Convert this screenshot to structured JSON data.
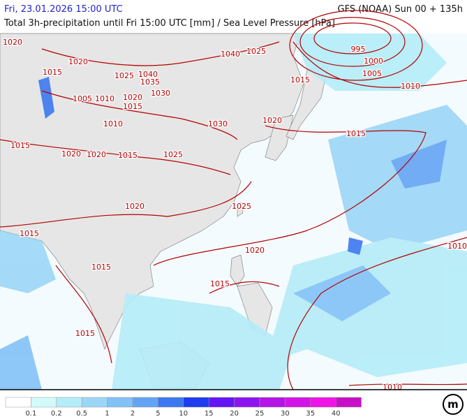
{
  "header": {
    "title": "Fri, 23.01.2026 15:00 UTC",
    "model": "GFS (NOAA) Sun 00 + 135h",
    "subtitle": "Total 3h-precipitation until Fri 15:00 UTC [mm] / Sea Level Pressure [hPa]"
  },
  "isobars": {
    "labels": [
      "1020",
      "1015",
      "1020",
      "1025",
      "1040",
      "1035",
      "1030",
      "1040",
      "1025",
      "995",
      "1000",
      "1005",
      "1010",
      "1015",
      "1005",
      "1010",
      "1020",
      "1015",
      "1010",
      "1030",
      "1020",
      "1015",
      "1020",
      "1020",
      "1015",
      "1025",
      "1015",
      "1020",
      "1025",
      "1015",
      "1020",
      "1010",
      "1015",
      "1015",
      "1015",
      "1010"
    ]
  },
  "legend": {
    "labels": [
      "0.1",
      "0.2",
      "0.5",
      "1",
      "2",
      "5",
      "10",
      "15",
      "20",
      "25",
      "30",
      "35",
      "40"
    ],
    "colors": [
      "#ffffff",
      "#d2fafa",
      "#b4ecf7",
      "#9cd6f7",
      "#82c2f7",
      "#64a4f5",
      "#3c78f0",
      "#1e3cf0",
      "#6414f5",
      "#8c14f0",
      "#b414e6",
      "#d214e6",
      "#f014e6",
      "#c80fc8"
    ]
  },
  "logo": "m"
}
